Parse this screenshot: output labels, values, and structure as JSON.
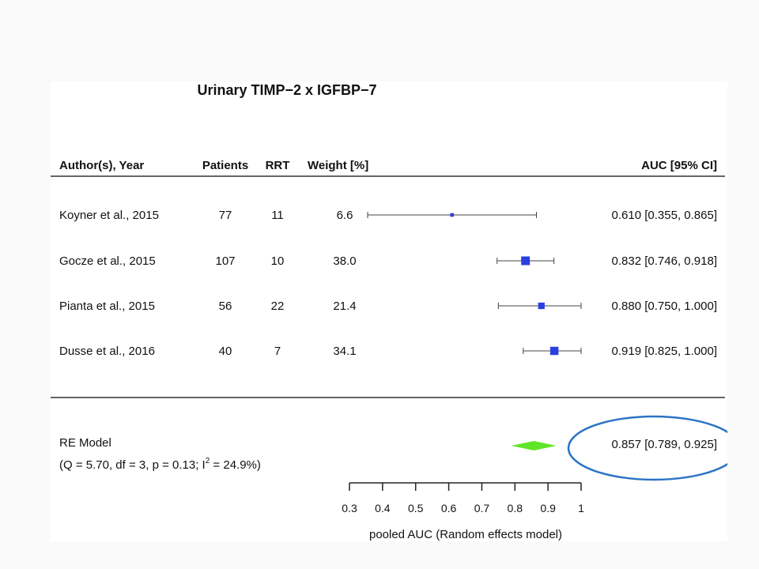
{
  "chart_data": {
    "type": "forest",
    "title": "Urinary TIMP−2 x IGFBP−7",
    "columns": [
      "Author(s), Year",
      "Patients",
      "RRT",
      "Weight [%]",
      "AUC [95% CI]"
    ],
    "studies": [
      {
        "label": "Koyner et al., 2015",
        "patients": "77",
        "rrt": "11",
        "weight": "6.6",
        "auc": 0.61,
        "lower": 0.355,
        "upper": 0.865,
        "ci_text": "0.610 [0.355, 0.865]"
      },
      {
        "label": "Gocze et al., 2015",
        "patients": "107",
        "rrt": "10",
        "weight": "38.0",
        "auc": 0.832,
        "lower": 0.746,
        "upper": 0.918,
        "ci_text": "0.832 [0.746, 0.918]"
      },
      {
        "label": "Pianta et al., 2015",
        "patients": "56",
        "rrt": "22",
        "weight": "21.4",
        "auc": 0.88,
        "lower": 0.75,
        "upper": 1.0,
        "ci_text": "0.880 [0.750, 1.000]"
      },
      {
        "label": "Dusse et al., 2016",
        "patients": "40",
        "rrt": "7",
        "weight": "34.1",
        "auc": 0.919,
        "lower": 0.825,
        "upper": 1.0,
        "ci_text": "0.919 [0.825, 1.000]"
      }
    ],
    "summary": {
      "label": "RE Model",
      "stats": "(Q = 5.70, df = 3, p = 0.13; I",
      "stats_sup": "2",
      "stats_end": " = 24.9%)",
      "auc": 0.857,
      "lower": 0.789,
      "upper": 0.925,
      "ci_text": "0.857 [0.789, 0.925]"
    },
    "x_ticks": [
      "0.3",
      "0.4",
      "0.5",
      "0.6",
      "0.7",
      "0.8",
      "0.9",
      "1"
    ],
    "xlim": [
      0.3,
      1.0
    ],
    "xlabel": "pooled AUC (Random effects model)",
    "colors": {
      "study_marker": "#2b3fe0",
      "summary_diamond": "#5ee626",
      "highlight_ellipse": "#2b74c4",
      "text": "#111111"
    },
    "annotation": "blue ellipse highlighting the pooled estimate"
  }
}
